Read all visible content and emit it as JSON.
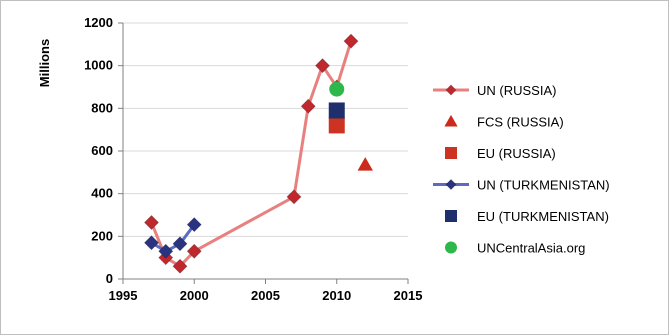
{
  "chart_data": {
    "type": "scatter",
    "title": "",
    "xlabel": "",
    "ylabel": "Millions",
    "xlim": [
      1995,
      2015
    ],
    "ylim": [
      0,
      1200
    ],
    "xticks": [
      "1995",
      "2000",
      "2005",
      "2010",
      "2015"
    ],
    "yticks": [
      "0",
      "200",
      "400",
      "600",
      "800",
      "1000",
      "1200"
    ],
    "grid": "horizontal",
    "legend_position": "right",
    "series": [
      {
        "name": "UN (RUSSIA)",
        "mode": "line+marker",
        "marker": "diamond",
        "line_color": "#e8807f",
        "marker_color": "#c0282d",
        "x": [
          1997,
          1998,
          1999,
          2000,
          2007,
          2008,
          2009,
          2010,
          2011
        ],
        "y": [
          265,
          100,
          60,
          130,
          385,
          810,
          1000,
          900,
          1115
        ]
      },
      {
        "name": "FCS (RUSSIA)",
        "mode": "marker",
        "marker": "triangle",
        "marker_color": "#cc2a1c",
        "x": [
          2012
        ],
        "y": [
          535
        ]
      },
      {
        "name": "EU (RUSSIA)",
        "mode": "marker",
        "marker": "square",
        "marker_color": "#cc3322",
        "x": [
          2010
        ],
        "y": [
          720
        ]
      },
      {
        "name": "UN (TURKMENISTAN)",
        "mode": "line+marker",
        "marker": "diamond",
        "line_color": "#5b6bc0",
        "marker_color": "#2a3380",
        "x": [
          1997,
          1998,
          1999,
          2000
        ],
        "y": [
          170,
          130,
          165,
          255
        ]
      },
      {
        "name": "EU (TURKMENISTAN)",
        "mode": "marker",
        "marker": "square",
        "marker_color": "#1f2f6b",
        "x": [
          2010
        ],
        "y": [
          790
        ]
      },
      {
        "name": "UNCentralAsia.org",
        "mode": "marker",
        "marker": "circle",
        "marker_color": "#2eb84c",
        "x": [
          2010
        ],
        "y": [
          890
        ]
      }
    ]
  }
}
